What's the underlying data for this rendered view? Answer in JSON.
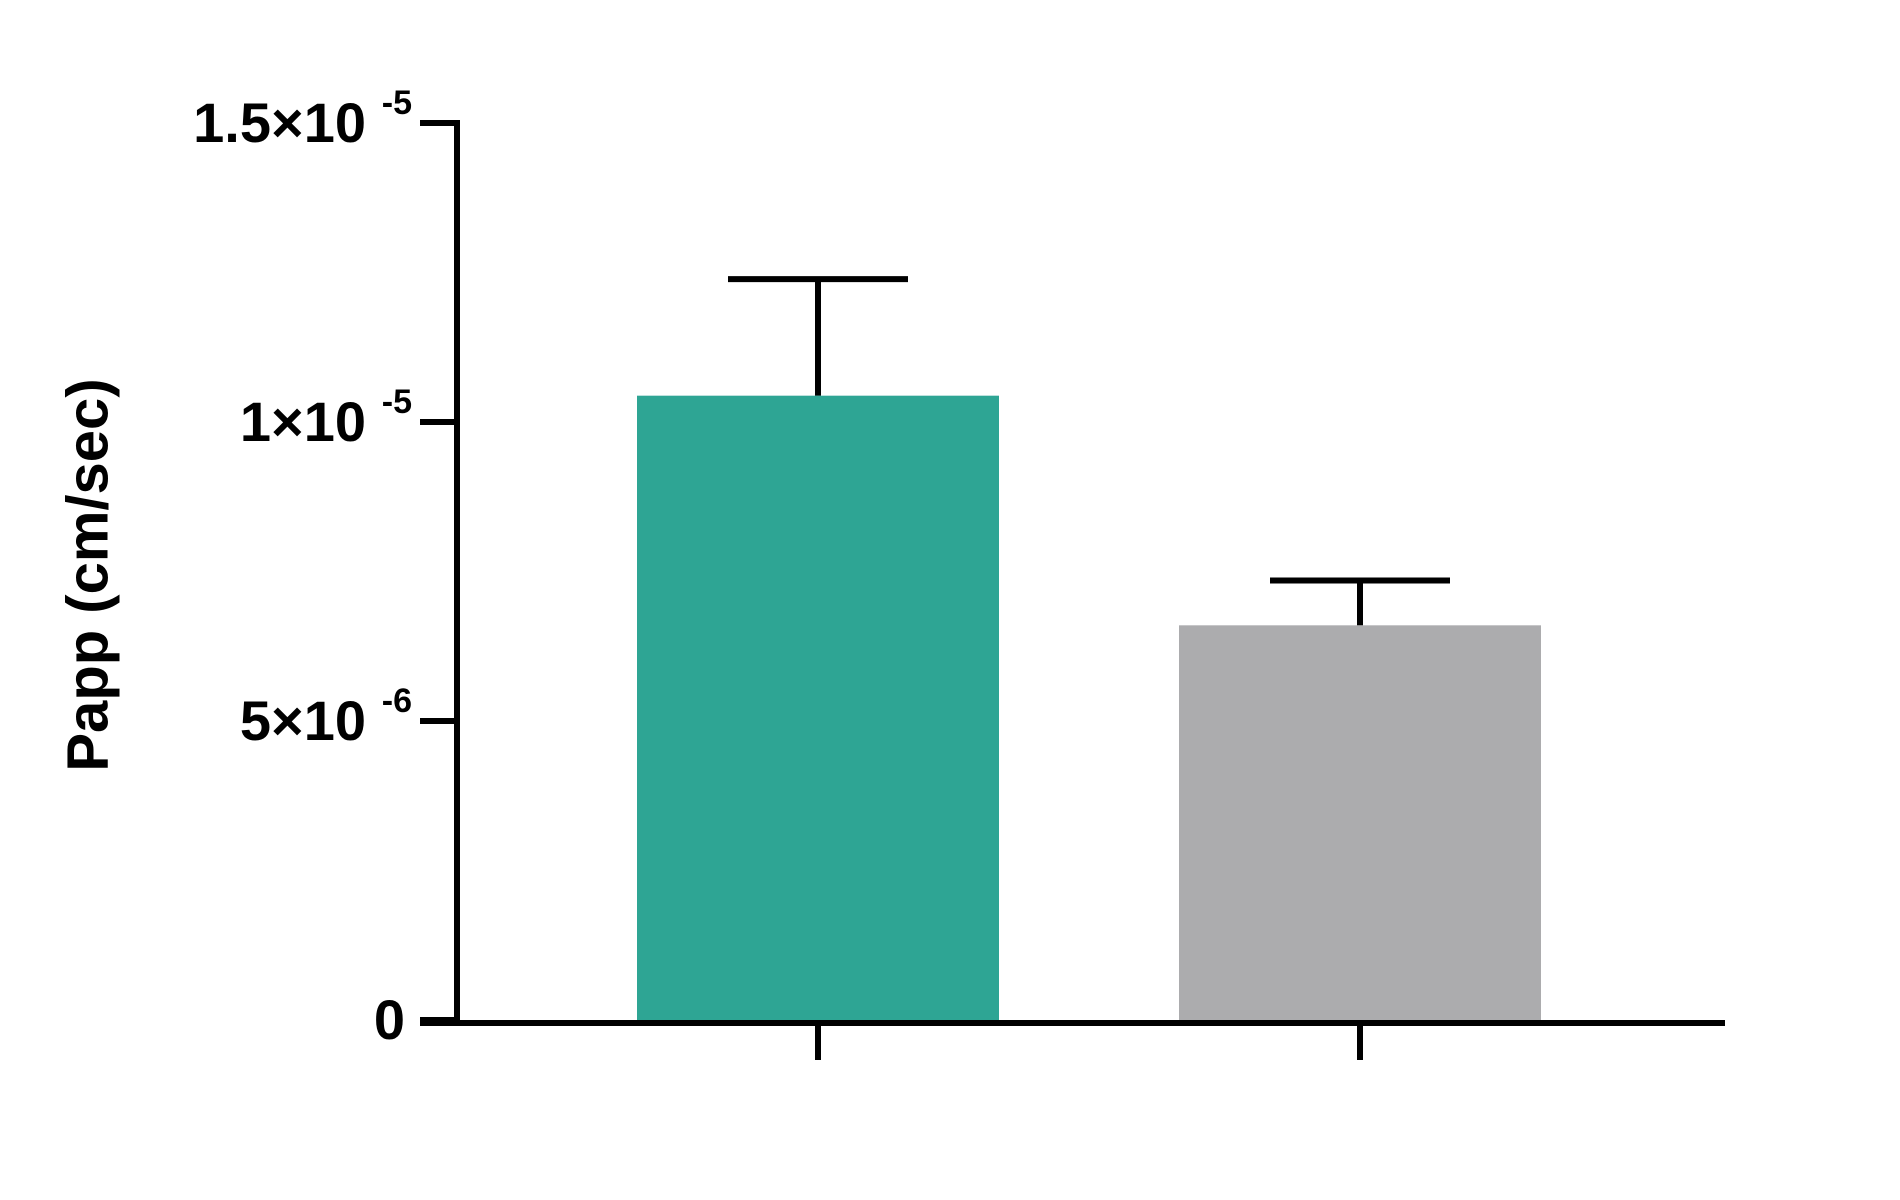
{
  "chart_data": {
    "type": "bar",
    "y_label": "Papp (cm/sec)",
    "categories": [
      null,
      null
    ],
    "values": [
      1.044e-05,
      6.6e-06
    ],
    "errors": [
      1.95e-06,
      7.5e-07
    ],
    "colors": [
      "#2ea594",
      "#acacae"
    ],
    "ylim": [
      0,
      1.5e-05
    ],
    "yticks": [
      0,
      {
        "value": 5e-06,
        "label": "5×10",
        "exponent": "-6"
      },
      {
        "value": 1e-05,
        "label": "1×10",
        "exponent": "-5"
      },
      {
        "value": 1.5e-05,
        "label": "1.5×10",
        "exponent": "-5"
      }
    ],
    "grid": false
  }
}
